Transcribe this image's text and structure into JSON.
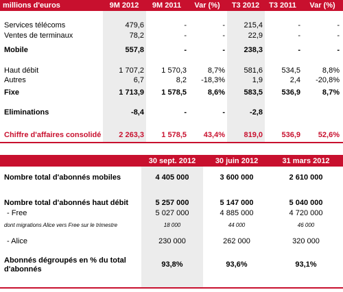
{
  "revenue_table": {
    "headers": [
      "millions d'euros",
      "9M 2012",
      "9M 2011",
      "Var (%)",
      "T3 2012",
      "T3 2011",
      "Var (%)"
    ],
    "rows": [
      {
        "label": "Services télécoms",
        "cells": [
          "479,6",
          "-",
          "-",
          "215,4",
          "-",
          "-"
        ]
      },
      {
        "label": "Ventes de terminaux",
        "cells": [
          "78,2",
          "-",
          "-",
          "22,9",
          "-",
          "-"
        ]
      },
      {
        "label": "Mobile",
        "cells": [
          "557,8",
          "-",
          "-",
          "238,3",
          "-",
          "-"
        ]
      },
      {
        "label": "Haut débit",
        "cells": [
          "1 707,2",
          "1 570,3",
          "8,7%",
          "581,6",
          "534,5",
          "8,8%"
        ]
      },
      {
        "label": "Autres",
        "cells": [
          "6,7",
          "8,2",
          "-18,3%",
          "1,9",
          "2,4",
          "-20,8%"
        ]
      },
      {
        "label": "Fixe",
        "cells": [
          "1 713,9",
          "1 578,5",
          "8,6%",
          "583,5",
          "536,9",
          "8,7%"
        ]
      },
      {
        "label": "Eliminations",
        "cells": [
          "-8,4",
          "-",
          "-",
          "-2,8",
          null,
          null
        ]
      },
      {
        "label": "Chiffre d'affaires consolidé",
        "cells": [
          "2 263,3",
          "1 578,5",
          "43,4%",
          "819,0",
          "536,9",
          "52,6%"
        ]
      }
    ]
  },
  "subscribers_table": {
    "headers": [
      "30 sept. 2012",
      "30 juin 2012",
      "31 mars 2012"
    ],
    "rows": [
      {
        "label": "Nombre total d'abonnés mobiles",
        "cells": [
          "4 405 000",
          "3 600 000",
          "2 610 000"
        ]
      },
      {
        "label": "Nombre total d'abonnés haut débit",
        "cells": [
          "5 257 000",
          "5 147 000",
          "5 040 000"
        ]
      },
      {
        "label": "- Free",
        "cells": [
          "5 027 000",
          "4 885 000",
          "4 720 000"
        ]
      },
      {
        "label": "dont migrations Alice vers Free sur le trimestre",
        "cells": [
          "18 000",
          "44 000",
          "46 000"
        ]
      },
      {
        "label": "- Alice",
        "cells": [
          "230 000",
          "262 000",
          "320 000"
        ]
      },
      {
        "label": "Abonnés dégroupés  en % du total d'abonnés",
        "cells": [
          "93,8%",
          "93,6%",
          "93,1%"
        ]
      }
    ]
  }
}
